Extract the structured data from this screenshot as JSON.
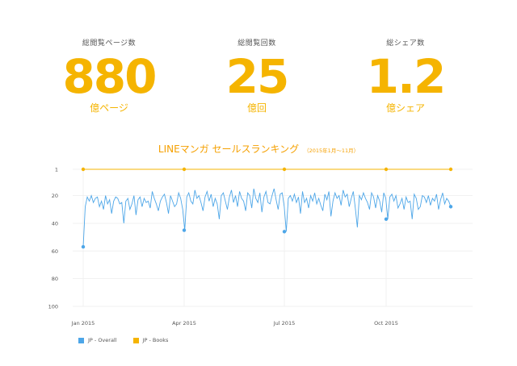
{
  "stats": [
    {
      "label": "総閲覧ページ数",
      "value": "880",
      "unit": "億ページ"
    },
    {
      "label": "総閲覧回数",
      "value": "25",
      "unit": "億回"
    },
    {
      "label": "総シェア数",
      "value": "1.2",
      "unit": "億シェア"
    }
  ],
  "chart_data": {
    "type": "line",
    "title": "LINEマンガ セールスランキング",
    "subtitle": "（2015年1月〜11月）",
    "y_reversed": true,
    "ylim": [
      1,
      100
    ],
    "y_ticks": [
      1,
      20,
      40,
      60,
      80,
      100
    ],
    "y_tick_labels": [
      "1",
      "20",
      "40",
      "60",
      "80",
      "100"
    ],
    "x_ticks": [
      "Jan 2015",
      "Apr 2015",
      "Jul 2015",
      "Oct 2015"
    ],
    "grid": true,
    "legend_position": "bottom-left",
    "series": [
      {
        "name": "JP - Overall",
        "color": "#4da6e8",
        "markers": [
          57,
          45,
          46,
          37,
          28
        ],
        "values": [
          57,
          28,
          21,
          24,
          20,
          25,
          22,
          21,
          28,
          24,
          30,
          20,
          26,
          23,
          33,
          24,
          21,
          22,
          26,
          25,
          40,
          24,
          22,
          30,
          26,
          20,
          34,
          23,
          21,
          28,
          22,
          25,
          24,
          29,
          17,
          22,
          26,
          31,
          24,
          21,
          19,
          25,
          33,
          20,
          24,
          28,
          26,
          18,
          22,
          30,
          45,
          21,
          18,
          24,
          26,
          16,
          22,
          20,
          25,
          31,
          21,
          17,
          24,
          19,
          28,
          22,
          26,
          37,
          20,
          18,
          24,
          30,
          21,
          16,
          25,
          20,
          28,
          17,
          22,
          24,
          31,
          18,
          20,
          29,
          15,
          22,
          25,
          18,
          32,
          21,
          17,
          25,
          26,
          20,
          15,
          23,
          30,
          19,
          18,
          28,
          46,
          22,
          20,
          24,
          19,
          25,
          21,
          33,
          17,
          25,
          22,
          29,
          20,
          24,
          18,
          26,
          22,
          27,
          31,
          19,
          23,
          17,
          35,
          24,
          18,
          22,
          20,
          27,
          16,
          21,
          19,
          28,
          22,
          17,
          29,
          43,
          20,
          23,
          18,
          22,
          25,
          30,
          18,
          21,
          29,
          20,
          24,
          32,
          18,
          22,
          37,
          21,
          19,
          24,
          20,
          29,
          26,
          22,
          30,
          21,
          25,
          24,
          37,
          19,
          22,
          30,
          28,
          20,
          21,
          25,
          20,
          27,
          22,
          24,
          19,
          30,
          23,
          18,
          26,
          22,
          24,
          28
        ]
      },
      {
        "name": "JP - Books",
        "color": "#f5b400",
        "markers": [
          1,
          1,
          1,
          1,
          1
        ],
        "values": [
          1,
          1
        ]
      }
    ]
  }
}
